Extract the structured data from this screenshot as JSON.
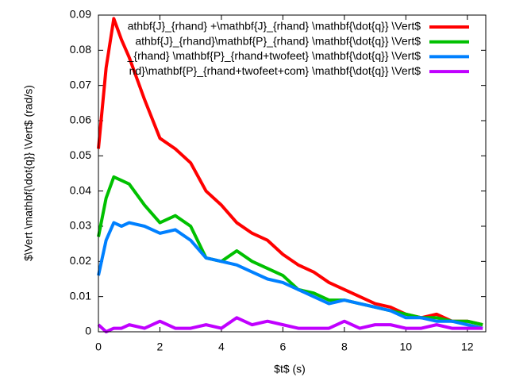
{
  "chart_data": {
    "type": "line",
    "xlabel": "$t$ (s)",
    "ylabel": "$\\Vert \\mathbf{\\dot{q}} \\Vert$ (rad/s)",
    "x": [
      0,
      0.25,
      0.5,
      0.75,
      1,
      1.5,
      2,
      2.5,
      3,
      3.5,
      4,
      4.5,
      5,
      5.5,
      6,
      6.5,
      7,
      7.5,
      8,
      8.5,
      9,
      9.5,
      10,
      10.5,
      11,
      11.5,
      12,
      12.5
    ],
    "series": [
      {
        "name": "athbf{J}_{rhand} +\\mathbf{J}_{rhand} \\mathbf{\\dot{q}} \\Vert$",
        "color": "#ff0000",
        "values": [
          0.052,
          0.075,
          0.089,
          0.083,
          0.078,
          0.066,
          0.055,
          0.052,
          0.048,
          0.04,
          0.036,
          0.031,
          0.028,
          0.026,
          0.022,
          0.019,
          0.017,
          0.014,
          0.012,
          0.01,
          0.008,
          0.007,
          0.005,
          0.004,
          0.005,
          0.003,
          0.003,
          0.002
        ]
      },
      {
        "name": "athbf{J}_{rhand}\\mathbf{P}_{rhand} \\mathbf{\\dot{q}} \\Vert$",
        "color": "#00c000",
        "values": [
          0.027,
          0.038,
          0.044,
          0.043,
          0.042,
          0.036,
          0.031,
          0.033,
          0.03,
          0.021,
          0.02,
          0.023,
          0.02,
          0.018,
          0.016,
          0.012,
          0.011,
          0.009,
          0.009,
          0.008,
          0.007,
          0.006,
          0.005,
          0.004,
          0.004,
          0.003,
          0.003,
          0.002
        ]
      },
      {
        "name": "_{rhand} \\mathbf{P}_{rhand+twofeet} \\mathbf{\\dot{q}} \\Vert$",
        "color": "#0080ff",
        "values": [
          0.016,
          0.026,
          0.031,
          0.03,
          0.031,
          0.03,
          0.028,
          0.029,
          0.026,
          0.021,
          0.02,
          0.019,
          0.017,
          0.015,
          0.014,
          0.012,
          0.01,
          0.008,
          0.009,
          0.008,
          0.007,
          0.006,
          0.004,
          0.004,
          0.003,
          0.003,
          0.002,
          0.001
        ]
      },
      {
        "name": "nd}\\mathbf{P}_{rhand+twofeet+com} \\mathbf{\\dot{q}} \\Vert$",
        "color": "#c000ff",
        "values": [
          0.002,
          0,
          0.001,
          0.001,
          0.002,
          0.001,
          0.003,
          0.001,
          0.001,
          0.002,
          0.001,
          0.004,
          0.002,
          0.003,
          0.002,
          0.001,
          0.001,
          0.001,
          0.003,
          0.001,
          0.002,
          0.002,
          0.001,
          0.001,
          0.002,
          0.001,
          0.001,
          0.001
        ]
      }
    ],
    "xlim": [
      0,
      12.6
    ],
    "xticks": [
      0,
      2,
      4,
      6,
      8,
      10,
      12
    ],
    "ylim": [
      0,
      0.09
    ],
    "yticks": [
      0,
      0.01,
      0.02,
      0.03,
      0.04,
      0.05,
      0.06,
      0.07,
      0.08,
      0.09
    ],
    "grid": false,
    "legend": "top-right"
  }
}
